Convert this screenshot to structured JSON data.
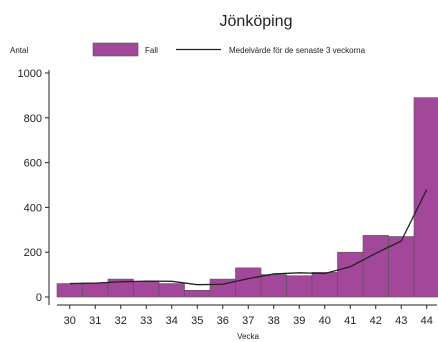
{
  "chart_data": {
    "type": "bar",
    "title": "Jönköping",
    "ylabel": "Antal",
    "xlabel": "Vecka",
    "categories": [
      "30",
      "31",
      "32",
      "33",
      "34",
      "35",
      "36",
      "37",
      "38",
      "39",
      "40",
      "41",
      "42",
      "43",
      "44"
    ],
    "ylim": [
      0,
      1000
    ],
    "yticks": [
      0,
      200,
      400,
      600,
      800,
      1000
    ],
    "grid": false,
    "legend_position": "top",
    "series": [
      {
        "name": "Fall",
        "type": "bar",
        "color": "#a2479a",
        "values": [
          60,
          63,
          80,
          70,
          60,
          30,
          80,
          130,
          100,
          95,
          110,
          200,
          275,
          270,
          890
        ]
      },
      {
        "name": "Medelvärde för de senaste 3 veckorna",
        "type": "line",
        "color": "#222222",
        "values": [
          60,
          62,
          68,
          71,
          70,
          55,
          57,
          82,
          103,
          108,
          105,
          135,
          195,
          250,
          480
        ]
      }
    ]
  }
}
